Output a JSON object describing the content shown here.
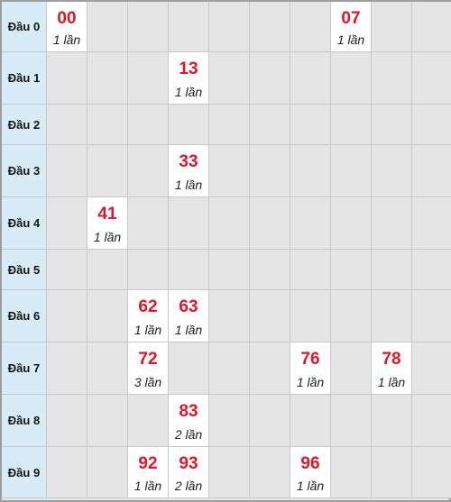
{
  "rows": [
    {
      "label": "Đầu 0",
      "cells": [
        {
          "col": 0,
          "num": "00",
          "count": "1 lần"
        },
        {
          "col": 7,
          "num": "07",
          "count": "1 lần"
        }
      ]
    },
    {
      "label": "Đầu 1",
      "cells": [
        {
          "col": 3,
          "num": "13",
          "count": "1 lần"
        }
      ]
    },
    {
      "label": "Đầu 2",
      "cells": []
    },
    {
      "label": "Đầu 3",
      "cells": [
        {
          "col": 3,
          "num": "33",
          "count": "1 lần"
        }
      ]
    },
    {
      "label": "Đầu 4",
      "cells": [
        {
          "col": 1,
          "num": "41",
          "count": "1 lần"
        }
      ]
    },
    {
      "label": "Đầu 5",
      "cells": []
    },
    {
      "label": "Đầu 6",
      "cells": [
        {
          "col": 2,
          "num": "62",
          "count": "1 lần"
        },
        {
          "col": 3,
          "num": "63",
          "count": "1 lần"
        }
      ]
    },
    {
      "label": "Đầu 7",
      "cells": [
        {
          "col": 2,
          "num": "72",
          "count": "3 lần"
        },
        {
          "col": 6,
          "num": "76",
          "count": "1 lần"
        },
        {
          "col": 8,
          "num": "78",
          "count": "1 lần"
        }
      ]
    },
    {
      "label": "Đầu 8",
      "cells": [
        {
          "col": 3,
          "num": "83",
          "count": "2 lần"
        }
      ]
    },
    {
      "label": "Đầu 9",
      "cells": [
        {
          "col": 2,
          "num": "92",
          "count": "1 lần"
        },
        {
          "col": 3,
          "num": "93",
          "count": "2 lần"
        },
        {
          "col": 6,
          "num": "96",
          "count": "1 lần"
        }
      ]
    }
  ]
}
